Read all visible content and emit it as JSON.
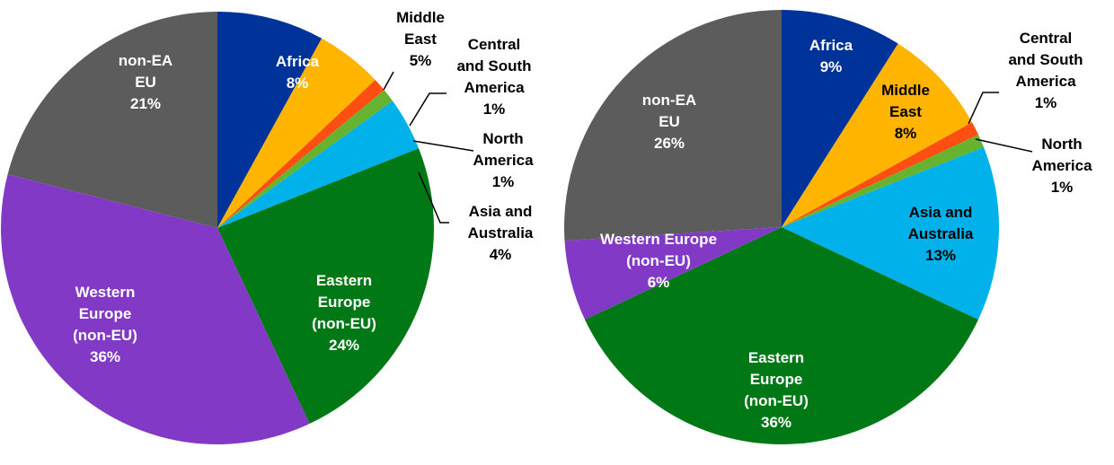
{
  "chart_data": [
    {
      "type": "pie",
      "slices": [
        {
          "label": [
            "Africa"
          ],
          "value": 8,
          "pct": "8%",
          "color": "#003399"
        },
        {
          "label": [
            "Middle",
            "East"
          ],
          "value": 5,
          "pct": "5%",
          "color": "#FFB400"
        },
        {
          "label": [
            "Central",
            "and South",
            "America"
          ],
          "value": 1,
          "pct": "1%",
          "color": "#FF4E12"
        },
        {
          "label": [
            "North",
            "America"
          ],
          "value": 1,
          "pct": "1%",
          "color": "#65B32E"
        },
        {
          "label": [
            "Asia and",
            "Australia"
          ],
          "value": 4,
          "pct": "4%",
          "color": "#00B1EA"
        },
        {
          "label": [
            "Eastern",
            "Europe",
            "(non-EU)"
          ],
          "value": 24,
          "pct": "24%",
          "color": "#007816"
        },
        {
          "label": [
            "Western",
            "Europe",
            "(non-EU)"
          ],
          "value": 36,
          "pct": "36%",
          "color": "#8139C6"
        },
        {
          "label": [
            "non-EA",
            "EU"
          ],
          "value": 21,
          "pct": "21%",
          "color": "#5C5C5C"
        }
      ]
    },
    {
      "type": "pie",
      "slices": [
        {
          "label": [
            "Africa"
          ],
          "value": 9,
          "pct": "9%",
          "color": "#003399"
        },
        {
          "label": [
            "Middle",
            "East"
          ],
          "value": 8,
          "pct": "8%",
          "color": "#FFB400"
        },
        {
          "label": [
            "Central",
            "and South",
            "America"
          ],
          "value": 1,
          "pct": "1%",
          "color": "#FF4E12"
        },
        {
          "label": [
            "North",
            "America"
          ],
          "value": 1,
          "pct": "1%",
          "color": "#65B32E"
        },
        {
          "label": [
            "Asia and",
            "Australia"
          ],
          "value": 13,
          "pct": "13%",
          "color": "#00B1EA"
        },
        {
          "label": [
            "Eastern",
            "Europe",
            "(non-EU)"
          ],
          "value": 36,
          "pct": "36%",
          "color": "#007816"
        },
        {
          "label": [
            "Western Europe",
            "(non-EU)"
          ],
          "value": 6,
          "pct": "6%",
          "color": "#8139C6"
        },
        {
          "label": [
            "non-EA",
            "EU"
          ],
          "value": 26,
          "pct": "26%",
          "color": "#5C5C5C"
        }
      ]
    }
  ]
}
